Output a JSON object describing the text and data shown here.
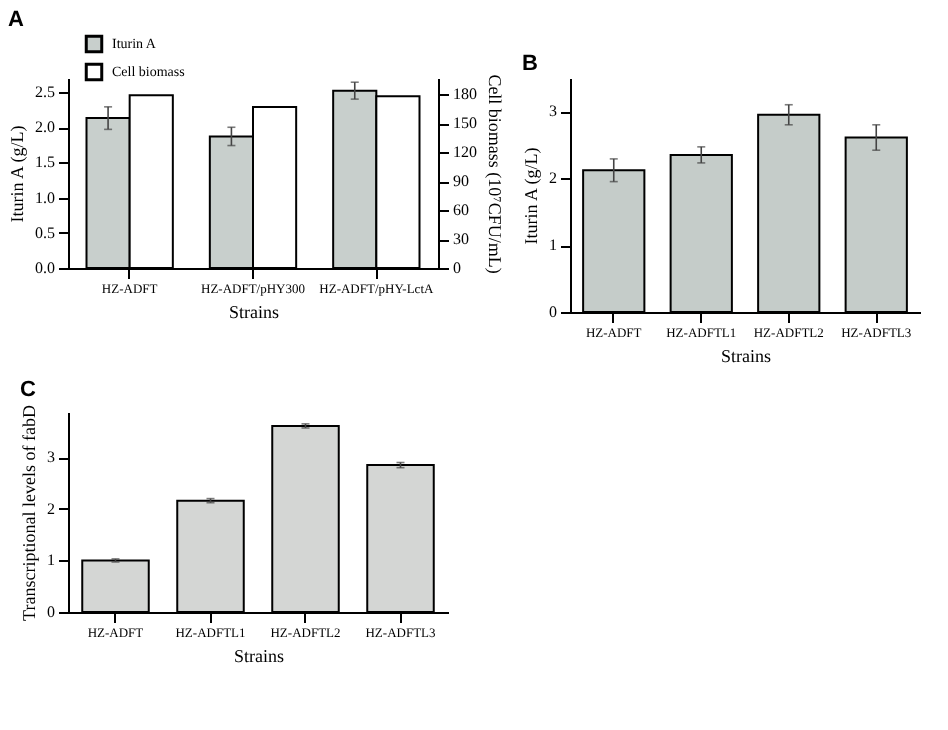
{
  "chart_data": [
    {
      "type": "bar",
      "title": "A",
      "xlabel": "Strains",
      "ylabel": "Iturin A (g/L)",
      "y2label": "Cell biomass (10⁷CFU/mL)",
      "categories": [
        "HZ-ADFT",
        "HZ-ADFT/pHY300",
        "HZ-ADFT/pHY-LctA"
      ],
      "series": [
        {
          "name": "Iturin A",
          "color": "#c8cfcc",
          "values": [
            2.13,
            1.87,
            2.52
          ],
          "errors": [
            0.16,
            0.13,
            0.12
          ]
        },
        {
          "name": "Cell biomass",
          "color": "#ffffff",
          "values": [
            179,
            167,
            178
          ],
          "axis": "y2"
        }
      ],
      "ylim": [
        0,
        2.7
      ],
      "yticks": [
        {
          "value": 0,
          "label": "0.0"
        },
        0.5,
        {
          "value": 1,
          "label": "1.0"
        },
        1.5,
        {
          "value": 2,
          "label": "2.0"
        },
        2.5
      ],
      "y2lim": [
        0,
        197
      ],
      "y2ticks": [
        0,
        30,
        60,
        90,
        120,
        150,
        180
      ],
      "legend": "top left",
      "grid": false
    },
    {
      "type": "bar",
      "title": "B",
      "xlabel": "Strains",
      "ylabel": "Iturin A (g/L)",
      "categories": [
        "HZ-ADFT",
        "HZ-ADFTL1",
        "HZ-ADFTL2",
        "HZ-ADFTL3"
      ],
      "series": [
        {
          "color": "#c5ccc9",
          "values": [
            2.12,
            2.35,
            2.95,
            2.61
          ],
          "errors": [
            0.17,
            0.12,
            0.15,
            0.19
          ]
        }
      ],
      "ylim": [
        0,
        3.5
      ],
      "yticks": [
        0,
        1,
        2,
        3
      ],
      "grid": false
    },
    {
      "type": "bar",
      "title": "C",
      "xlabel": "Strains",
      "ylabel": "Transcriptional levels of fabD",
      "categories": [
        "HZ-ADFT",
        "HZ-ADFTL1",
        "HZ-ADFTL2",
        "HZ-ADFTL3"
      ],
      "series": [
        {
          "color": "#d4d6d4",
          "values": [
            1.0,
            2.16,
            3.61,
            2.85
          ],
          "errors": [
            0.03,
            0.04,
            0.04,
            0.05
          ]
        }
      ],
      "ylim": [
        0,
        3.88
      ],
      "yticks": [
        0,
        1,
        2,
        3
      ],
      "grid": false
    }
  ]
}
